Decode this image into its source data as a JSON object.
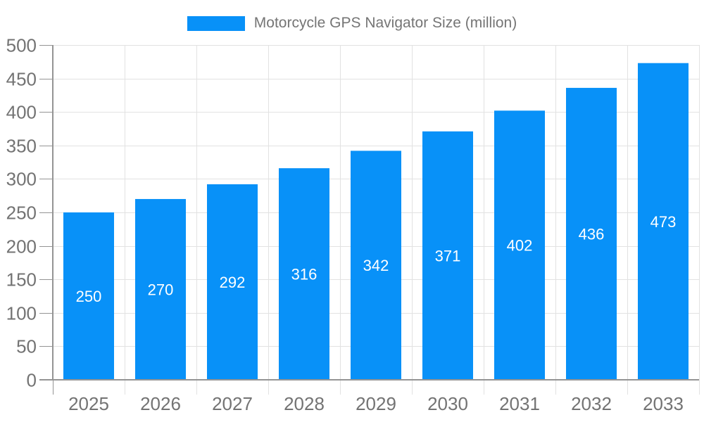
{
  "colors": {
    "bar": "#0891F8",
    "axis_line": "#949494",
    "grid_line": "#e2e2e2",
    "tick_outside": "#e2e2e2",
    "axis_text": "#737373",
    "legend_text": "#757575",
    "value_text": "#ffffff",
    "background": "#ffffff"
  },
  "chart_data": {
    "type": "bar",
    "title": "",
    "legend": "Motorcycle GPS Navigator Size (million)",
    "legend_position": "top-center",
    "categories": [
      "2025",
      "2026",
      "2027",
      "2028",
      "2029",
      "2030",
      "2031",
      "2032",
      "2033"
    ],
    "values": [
      250,
      270,
      292,
      316,
      342,
      371,
      402,
      436,
      473
    ],
    "xlabel": "",
    "ylabel": "",
    "ylim": [
      0,
      500
    ],
    "ytick_step": 50,
    "yticks": [
      0,
      50,
      100,
      150,
      200,
      250,
      300,
      350,
      400,
      450,
      500
    ],
    "ytick_labels": [
      "0",
      "50",
      "100",
      "150",
      "200",
      "250",
      "300",
      "350",
      "400",
      "450",
      "500"
    ],
    "grid": true
  }
}
